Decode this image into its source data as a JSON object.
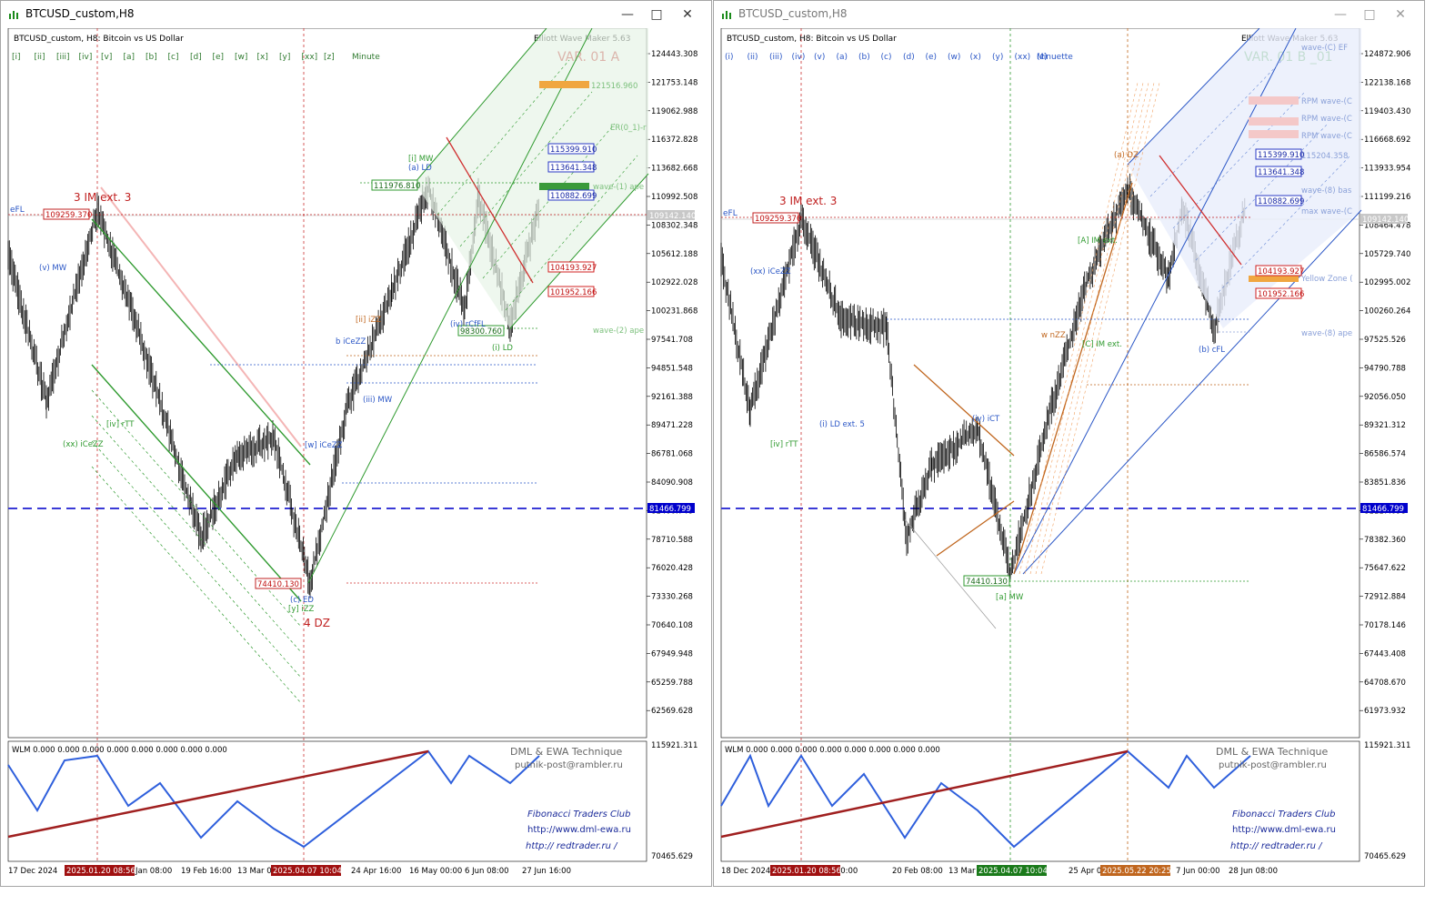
{
  "windows": [
    {
      "title": "BTCUSD_custom,H8",
      "header": "BTCUSD_custom, H8:  Bitcoin vs US Dollar",
      "indicator": "Elliott Wave Maker 5.63",
      "variant": "VAR. 01 A",
      "wave_buttons": [
        "[i]",
        "[ii]",
        "[iii]",
        "[iv]",
        "[v]",
        "[a]",
        "[b]",
        "[c]",
        "[d]",
        "[e]",
        "[w]",
        "[x]",
        "[y]",
        "[xx]",
        "[z]"
      ],
      "degree": "Minute",
      "price_ticks": [
        "124443.308",
        "121753.148",
        "119062.988",
        "116372.828",
        "113682.668",
        "110992.508",
        "108302.348",
        "105612.188",
        "102922.028",
        "100231.868",
        "97541.708",
        "94851.548",
        "92161.388",
        "89471.228",
        "86781.068",
        "84090.908",
        "81400.748",
        "78710.588",
        "76020.428",
        "73330.268",
        "70640.108",
        "67949.948",
        "65259.788",
        "62569.628"
      ],
      "current_price": "109142.140",
      "hline_price": "81466.799",
      "boxes": {
        "blue": [
          "115399.910",
          "113641.348",
          "110882.699"
        ],
        "red": [
          "104193.927",
          "101952.166"
        ],
        "green": [
          "111976.810",
          "98300.760"
        ],
        "brown": [
          "109259.370",
          "74410.130"
        ]
      },
      "annotations": {
        "ext": "3 IM ext. 3",
        "dz": "4 DZ",
        "efl": "eFL",
        "wave1": "wave-(1) ape",
        "wave2": "wave-(2) ape",
        "er": "ER(0_1)-r",
        "target": "121516.960"
      },
      "wave_labels": [
        "[i] MW",
        "(v) MW",
        "(xx) iCeZZ",
        "[iv] rTT",
        "[w] iCeZZ",
        "(i) LD",
        "[ii] iZZ",
        "b iCeZZ",
        "(iii) MW",
        "(iv) rCfFL",
        "[y] iZZ",
        "(a) LD",
        "(c) ED"
      ],
      "sub": {
        "wlm": "WLM 0.000 0.000 0.000 0.000 0.000 0.000 0.000 0.000",
        "top": "115921.311",
        "bottom": "70465.629"
      },
      "credits": [
        "DML & EWA Technique",
        "putnik-post@rambler.ru",
        "Fibonacci    Traders    Club",
        "http://www.dml-ewa.ru",
        "http://  redtrader.ru  /"
      ],
      "time_ticks": [
        "17 Dec 2024",
        "Jan 08:00",
        "19 Feb 16:00",
        "13 Mar 0",
        "24 Apr 16:00",
        "16 May 00:00",
        "6 Jun 08:00",
        "27 Jun 16:00"
      ],
      "time_flags": [
        "2025.01.20 08:56",
        "2025.04.07 10:04"
      ]
    },
    {
      "title": "BTCUSD_custom,H8",
      "header": "BTCUSD_custom, H8:  Bitcoin vs US Dollar",
      "indicator": "Elliott Wave Maker 5.63",
      "variant": "VAR. 01 B _01",
      "wave_buttons": [
        "(i)",
        "(ii)",
        "(iii)",
        "(iv)",
        "(v)",
        "(a)",
        "(b)",
        "(c)",
        "(d)",
        "(e)",
        "(w)",
        "(x)",
        "(y)",
        "(xx)",
        "(z)"
      ],
      "degree": "Minuette",
      "price_ticks": [
        "124872.906",
        "122138.168",
        "119403.430",
        "116668.692",
        "113933.954",
        "111199.216",
        "108464.478",
        "105729.740",
        "102995.002",
        "100260.264",
        "97525.526",
        "94790.788",
        "92056.050",
        "89321.312",
        "86586.574",
        "83851.836",
        "81117.098",
        "78382.360",
        "75647.622",
        "72912.884",
        "70178.146",
        "67443.408",
        "64708.670",
        "61973.932"
      ],
      "current_price": "109142.140",
      "hline_price": "81466.799",
      "boxes": {
        "blue": [
          "115399.910",
          "113641.348",
          "110882.699"
        ],
        "red": [
          "104193.927",
          "101952.166"
        ],
        "green": [
          "74410.130"
        ],
        "brown": [
          "109259.370"
        ]
      },
      "annotations": {
        "ext": "3 IM ext. 3",
        "efl": "eFL",
        "yellow": "Yellow Zone (",
        "wave8": "wave-(8) ape",
        "wave8b": "wave-(8) bas",
        "maxwave": "max wave-(C",
        "rpm1": "RPM wave-(C",
        "rpm2": "RPM wave-(C",
        "rpm3": "RPM wave-(C",
        "target": "115204.358",
        "wavec": "wave-(C) EF"
      },
      "wave_labels": [
        "(a) DZ",
        "(xx) iCeZZ",
        "[iv] rTT",
        "(i) LD ext. 5",
        "(iv) iCT",
        "[a] MW",
        "(b) cFL",
        "[A] IM ext.",
        "w nZZ",
        "[C] IM ext."
      ],
      "sub": {
        "wlm": "WLM 0.000 0.000 0.000 0.000 0.000 0.000 0.000 0.000",
        "top": "115921.311",
        "bottom": "70465.629"
      },
      "credits": [
        "DML & EWA Technique",
        "putnik-post@rambler.ru",
        "Fibonacci    Traders    Club",
        "http://www.dml-ewa.ru",
        "http://  redtrader.ru  /"
      ],
      "time_ticks": [
        "18 Dec 2024",
        "Jan 00:00",
        "20 Feb 08:00",
        "13 Mar 1",
        "25 Apr 08",
        "7 Jun 00:00",
        "28 Jun 08:00"
      ],
      "time_flags": [
        "2025.01.20 08:56",
        "2025.04.07 10:04",
        "2025.05.22 20:25"
      ]
    }
  ],
  "colors": {
    "price_axis_box": "#0000cc",
    "hline": "#3a3ad6",
    "vline": "#cc3333",
    "green": "#2f9a2f",
    "brown": "#c0661e",
    "blue": "#2a56c6",
    "red": "#d02020"
  }
}
